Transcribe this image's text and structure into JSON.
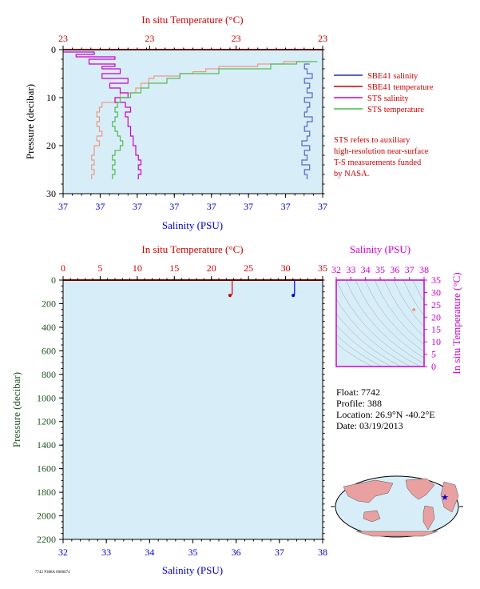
{
  "chart_data": [
    {
      "type": "line",
      "panel": "near-surface-profile",
      "top_axis": {
        "label": "In situ Temperature (°C)",
        "ticks": [
          "23",
          "23",
          "23",
          "23"
        ]
      },
      "bottom_axis": {
        "label": "Salinity (PSU)",
        "ticks": [
          "37",
          "37",
          "37",
          "37",
          "37",
          "37",
          "37",
          "37"
        ]
      },
      "left_axis": {
        "label": "Pressure (decibar)",
        "ticks": [
          "0",
          "10",
          "20",
          "30"
        ],
        "ylim": [
          0,
          30
        ]
      },
      "legend_position": "right",
      "legend": [
        {
          "label": "SBE41 salinity",
          "color": "#2233aa"
        },
        {
          "label": "SBE41 temperature",
          "color": "#cc0000"
        },
        {
          "label": "STS salinity",
          "color": "#cc00cc"
        },
        {
          "label": "STS temperature",
          "color": "#44bb44"
        }
      ],
      "note": [
        "STS refers to auxiliary",
        "high-resolution near-surface",
        "T-S measurements funded",
        "by NASA."
      ],
      "series": [
        {
          "name": "SBE41 salinity",
          "color": "#5566cc",
          "points": [
            [
              0.95,
              3
            ],
            [
              0.93,
              4
            ],
            [
              0.94,
              5
            ],
            [
              0.96,
              6
            ],
            [
              0.93,
              7
            ],
            [
              0.95,
              8
            ],
            [
              0.94,
              9
            ],
            [
              0.96,
              10
            ],
            [
              0.93,
              11
            ],
            [
              0.95,
              12
            ],
            [
              0.94,
              13
            ],
            [
              0.93,
              14
            ],
            [
              0.96,
              15
            ],
            [
              0.94,
              16
            ],
            [
              0.93,
              17
            ],
            [
              0.95,
              18
            ],
            [
              0.94,
              19
            ],
            [
              0.92,
              20
            ],
            [
              0.95,
              21
            ],
            [
              0.93,
              22
            ],
            [
              0.94,
              23
            ],
            [
              0.92,
              24
            ],
            [
              0.95,
              25
            ],
            [
              0.93,
              26
            ],
            [
              0.94,
              27
            ]
          ]
        },
        {
          "name": "SBE41 temperature",
          "color": "#ee9988",
          "points": [
            [
              0.96,
              2.5
            ],
            [
              0.85,
              3
            ],
            [
              0.75,
              3.5
            ],
            [
              0.6,
              4
            ],
            [
              0.55,
              4.6
            ],
            [
              0.5,
              5
            ],
            [
              0.45,
              5.5
            ],
            [
              0.35,
              6
            ],
            [
              0.33,
              7
            ],
            [
              0.3,
              8
            ],
            [
              0.28,
              9
            ],
            [
              0.22,
              10
            ],
            [
              0.2,
              11
            ],
            [
              0.15,
              12
            ],
            [
              0.14,
              13
            ],
            [
              0.13,
              14
            ],
            [
              0.14,
              15
            ],
            [
              0.13,
              16
            ],
            [
              0.14,
              17
            ],
            [
              0.15,
              18
            ],
            [
              0.13,
              19
            ],
            [
              0.14,
              20
            ],
            [
              0.12,
              21
            ],
            [
              0.12,
              22
            ],
            [
              0.11,
              23
            ],
            [
              0.12,
              24
            ],
            [
              0.11,
              25
            ],
            [
              0.12,
              26
            ],
            [
              0.11,
              27
            ]
          ]
        },
        {
          "name": "STS salinity",
          "color": "#cc00cc",
          "points": [
            [
              0.0,
              0.5
            ],
            [
              0.12,
              1
            ],
            [
              0.05,
              1.5
            ],
            [
              0.2,
              2
            ],
            [
              0.1,
              3
            ],
            [
              0.2,
              3.5
            ],
            [
              0.15,
              4
            ],
            [
              0.22,
              5
            ],
            [
              0.15,
              6
            ],
            [
              0.25,
              7
            ],
            [
              0.18,
              8
            ],
            [
              0.22,
              9
            ],
            [
              0.25,
              10
            ],
            [
              0.2,
              11
            ],
            [
              0.24,
              12
            ],
            [
              0.26,
              13
            ],
            [
              0.24,
              14
            ],
            [
              0.25,
              16
            ],
            [
              0.26,
              18
            ],
            [
              0.27,
              20
            ],
            [
              0.28,
              22
            ],
            [
              0.29,
              23
            ],
            [
              0.3,
              24
            ],
            [
              0.29,
              25
            ],
            [
              0.3,
              26
            ],
            [
              0.29,
              27
            ]
          ]
        },
        {
          "name": "STS temperature",
          "color": "#55bb55",
          "points": [
            [
              0.98,
              2.5
            ],
            [
              0.9,
              3
            ],
            [
              0.8,
              4
            ],
            [
              0.6,
              5
            ],
            [
              0.45,
              6
            ],
            [
              0.4,
              7
            ],
            [
              0.33,
              8
            ],
            [
              0.3,
              9
            ],
            [
              0.26,
              10
            ],
            [
              0.22,
              11
            ],
            [
              0.21,
              12
            ],
            [
              0.2,
              13
            ],
            [
              0.21,
              14
            ],
            [
              0.2,
              15
            ],
            [
              0.19,
              16
            ],
            [
              0.2,
              17
            ],
            [
              0.21,
              18
            ],
            [
              0.22,
              19
            ],
            [
              0.23,
              20
            ],
            [
              0.22,
              21
            ],
            [
              0.2,
              22
            ],
            [
              0.19,
              23
            ],
            [
              0.2,
              24
            ],
            [
              0.19,
              25
            ],
            [
              0.2,
              26
            ],
            [
              0.19,
              27
            ]
          ]
        }
      ],
      "x_scale_note": "x values are fractions of the axis width because the printed ticks are all identical (37 / 23)"
    },
    {
      "type": "line",
      "panel": "full-depth-profile",
      "top_axis": {
        "label": "In situ Temperature (°C)",
        "ticks": [
          0,
          5,
          10,
          15,
          20,
          25,
          30,
          35
        ],
        "xlim": [
          0,
          35
        ]
      },
      "bottom_axis": {
        "label": "Salinity (PSU)",
        "ticks": [
          32,
          33,
          34,
          35,
          36,
          37,
          38
        ],
        "xlim": [
          32,
          38
        ]
      },
      "left_axis": {
        "label": "Pressure (decibar)",
        "ticks": [
          0,
          200,
          400,
          600,
          800,
          1000,
          1200,
          1400,
          1600,
          1800,
          2000,
          2200
        ],
        "ylim": [
          0,
          2200
        ]
      },
      "series": [
        {
          "name": "temperature",
          "color": "#cc0000",
          "points": [
            [
              22.8,
              0
            ],
            [
              22.8,
              120
            ],
            [
              22.5,
              130
            ]
          ]
        },
        {
          "name": "salinity",
          "color": "#0000cc",
          "points": [
            [
              37.35,
              0
            ],
            [
              37.35,
              120
            ],
            [
              37.32,
              130
            ]
          ]
        }
      ]
    },
    {
      "type": "scatter",
      "panel": "t-s-diagram",
      "top_axis": {
        "label": "Salinity (PSU)",
        "ticks": [
          32,
          33,
          34,
          35,
          36,
          37,
          38
        ],
        "xlim": [
          32,
          38
        ]
      },
      "right_axis": {
        "label": "In situ Temperature (°C)",
        "ticks": [
          0,
          5,
          10,
          15,
          20,
          25,
          30,
          35
        ],
        "ylim": [
          0,
          35
        ]
      },
      "points": [
        [
          37.3,
          23
        ]
      ],
      "point_color": "#ee9988"
    }
  ],
  "float_info": {
    "float": "Float:  7742",
    "profile": "Profile:  388",
    "location": "Location:  26.9°N  -40.2°E",
    "date": "Date:  03/19/2013"
  },
  "map": {
    "marker_color": "#0000cc",
    "land_color": "#e8a0a0",
    "ocean_color": "#d7eef8"
  },
  "footer": "7742 P388A 0000074",
  "colors": {
    "plot_bg": "#d7eef8",
    "red": "#cc0000",
    "blue": "#0000cc",
    "green": "#225522",
    "magenta": "#cc00cc"
  }
}
